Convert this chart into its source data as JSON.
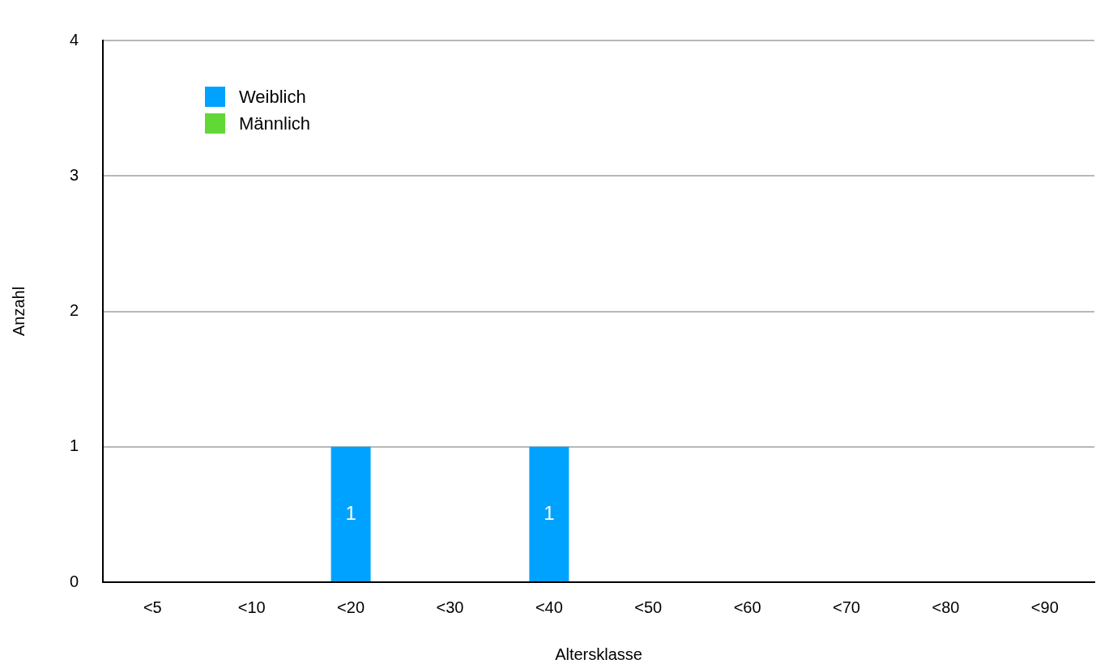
{
  "chart_data": {
    "type": "bar",
    "xlabel": "Altersklasse",
    "ylabel": "Anzahl",
    "categories": [
      "<5",
      "<10",
      "<20",
      "<30",
      "<40",
      "<50",
      "<60",
      "<70",
      "<80",
      "<90"
    ],
    "series": [
      {
        "name": "Weiblich",
        "color": "#00a2ff",
        "values": [
          0,
          0,
          1,
          0,
          1,
          0,
          0,
          0,
          0,
          0
        ],
        "value_labels": [
          null,
          null,
          "1",
          null,
          "1",
          null,
          null,
          null,
          null,
          null
        ]
      },
      {
        "name": "Männlich",
        "color": "#61d836",
        "values": [
          0,
          0,
          0,
          0,
          0,
          0,
          0,
          0,
          0,
          0
        ]
      }
    ],
    "stacked": true,
    "ylim": [
      0,
      4
    ],
    "yticks": [
      0,
      1,
      2,
      3,
      4
    ],
    "grid": "y",
    "legend": "top left"
  }
}
